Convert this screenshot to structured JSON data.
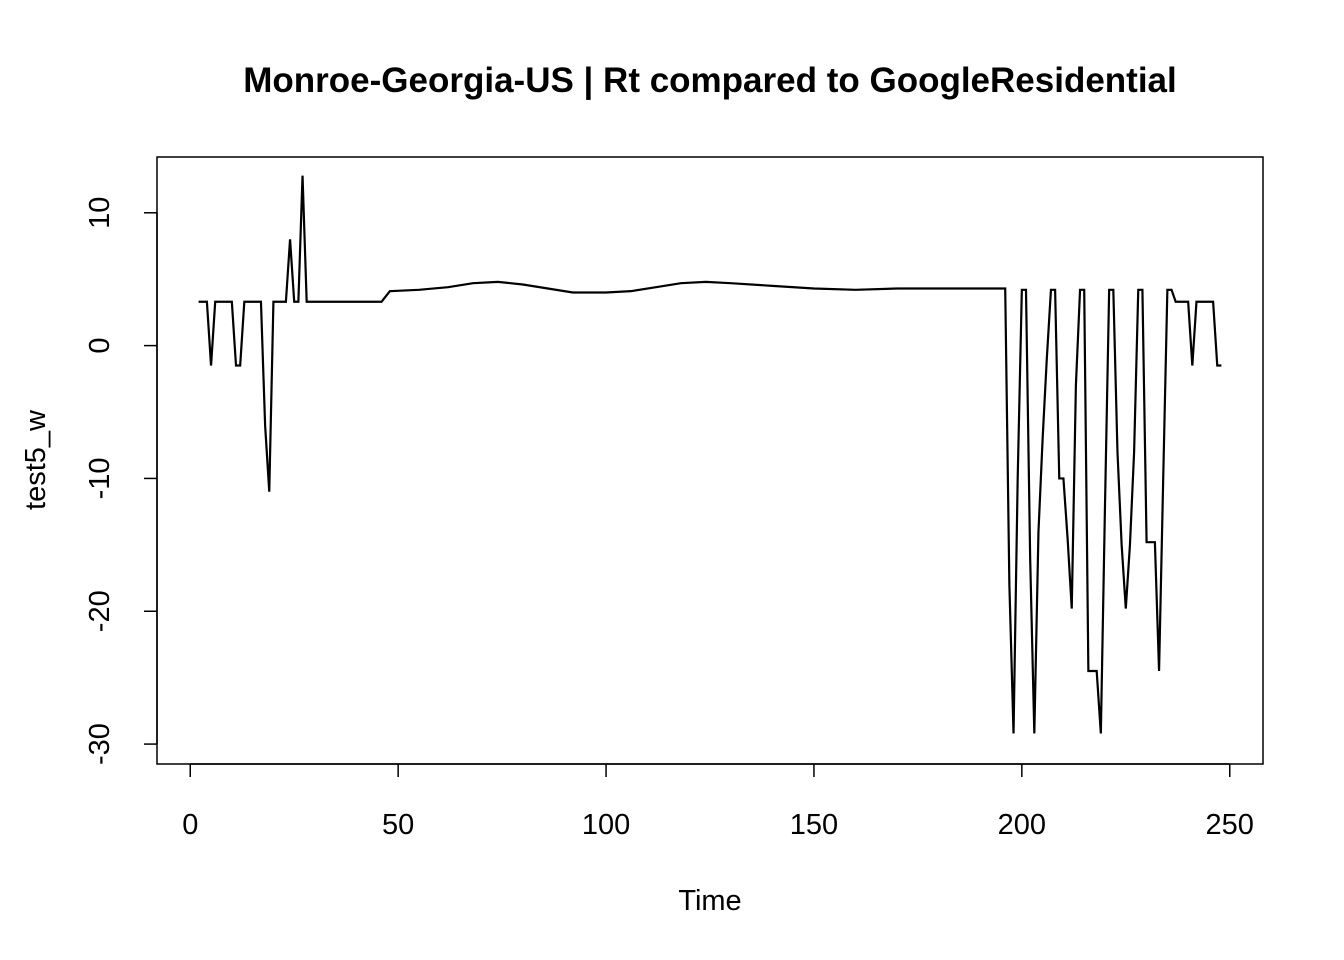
{
  "chart_data": {
    "type": "line",
    "title": "Monroe-Georgia-US | Rt compared to GoogleResidential",
    "xlabel": "Time",
    "ylabel": "test5_w",
    "xlim": [
      -8,
      258
    ],
    "ylim": [
      -31.5,
      14.2
    ],
    "x_ticks": [
      0,
      50,
      100,
      150,
      200,
      250
    ],
    "y_ticks": [
      -30,
      -20,
      -10,
      0,
      10
    ],
    "grid": false,
    "legend": "none",
    "series": [
      {
        "color": "#000000",
        "points": [
          [
            2,
            3.3
          ],
          [
            3,
            3.3
          ],
          [
            4,
            3.3
          ],
          [
            5,
            -1.5
          ],
          [
            6,
            3.3
          ],
          [
            7,
            3.3
          ],
          [
            8,
            3.3
          ],
          [
            9,
            3.3
          ],
          [
            10,
            3.3
          ],
          [
            11,
            -1.5
          ],
          [
            12,
            -1.5
          ],
          [
            13,
            3.3
          ],
          [
            14,
            3.3
          ],
          [
            15,
            3.3
          ],
          [
            16,
            3.3
          ],
          [
            17,
            3.3
          ],
          [
            18,
            -6
          ],
          [
            19,
            -11
          ],
          [
            20,
            3.3
          ],
          [
            21,
            3.3
          ],
          [
            22,
            3.3
          ],
          [
            23,
            3.3
          ],
          [
            24,
            8
          ],
          [
            25,
            3.3
          ],
          [
            26,
            3.3
          ],
          [
            27,
            12.8
          ],
          [
            28,
            3.3
          ],
          [
            30,
            3.3
          ],
          [
            35,
            3.3
          ],
          [
            40,
            3.3
          ],
          [
            46,
            3.3
          ],
          [
            48,
            4.1
          ],
          [
            55,
            4.2
          ],
          [
            62,
            4.4
          ],
          [
            68,
            4.7
          ],
          [
            74,
            4.8
          ],
          [
            80,
            4.6
          ],
          [
            86,
            4.3
          ],
          [
            92,
            4.0
          ],
          [
            100,
            4.0
          ],
          [
            106,
            4.1
          ],
          [
            112,
            4.4
          ],
          [
            118,
            4.7
          ],
          [
            124,
            4.8
          ],
          [
            130,
            4.7
          ],
          [
            140,
            4.5
          ],
          [
            150,
            4.3
          ],
          [
            160,
            4.2
          ],
          [
            170,
            4.3
          ],
          [
            180,
            4.3
          ],
          [
            190,
            4.3
          ],
          [
            196,
            4.3
          ],
          [
            197,
            -18
          ],
          [
            198,
            -29.2
          ],
          [
            199,
            -10
          ],
          [
            200,
            4.2
          ],
          [
            201,
            4.2
          ],
          [
            202,
            -16
          ],
          [
            203,
            -29.2
          ],
          [
            204,
            -14
          ],
          [
            205,
            -7
          ],
          [
            206,
            -1
          ],
          [
            207,
            4.2
          ],
          [
            208,
            4.2
          ],
          [
            209,
            -10
          ],
          [
            210,
            -10
          ],
          [
            211,
            -14.5
          ],
          [
            212,
            -19.8
          ],
          [
            213,
            -3
          ],
          [
            214,
            4.2
          ],
          [
            215,
            4.2
          ],
          [
            216,
            -24.5
          ],
          [
            217,
            -24.5
          ],
          [
            218,
            -24.5
          ],
          [
            219,
            -29.2
          ],
          [
            220,
            -12
          ],
          [
            221,
            4.2
          ],
          [
            222,
            4.2
          ],
          [
            223,
            -8
          ],
          [
            224,
            -15
          ],
          [
            225,
            -19.8
          ],
          [
            226,
            -15
          ],
          [
            227,
            -8
          ],
          [
            228,
            4.2
          ],
          [
            229,
            4.2
          ],
          [
            230,
            -14.8
          ],
          [
            231,
            -14.8
          ],
          [
            232,
            -14.8
          ],
          [
            233,
            -24.5
          ],
          [
            234,
            -10
          ],
          [
            235,
            4.2
          ],
          [
            236,
            4.2
          ],
          [
            237,
            3.3
          ],
          [
            238,
            3.3
          ],
          [
            239,
            3.3
          ],
          [
            240,
            3.3
          ],
          [
            241,
            -1.5
          ],
          [
            242,
            3.3
          ],
          [
            243,
            3.3
          ],
          [
            244,
            3.3
          ],
          [
            245,
            3.3
          ],
          [
            246,
            3.3
          ],
          [
            247,
            -1.5
          ],
          [
            248,
            -1.5
          ]
        ]
      }
    ]
  }
}
